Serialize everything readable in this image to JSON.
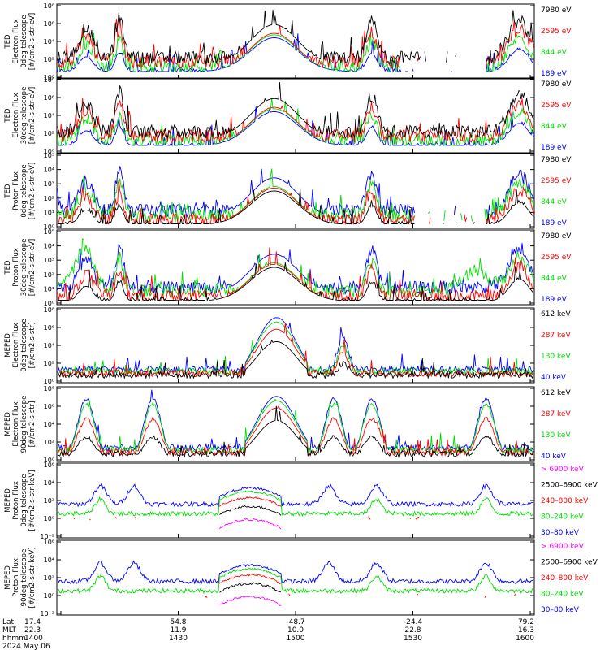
{
  "chart_data": {
    "type": "line",
    "date_label": "2024 May 06",
    "x_axis": {
      "row_labels": [
        "Lat",
        "MLT",
        "hhmm"
      ],
      "ticks": [
        {
          "lat": "17.4",
          "mlt": "22.3",
          "hhmm": "1400"
        },
        {
          "lat": "54.8",
          "mlt": "11.9",
          "hhmm": "1430"
        },
        {
          "lat": "-48.7",
          "mlt": "10.0",
          "hhmm": "1500"
        },
        {
          "lat": "-24.4",
          "mlt": "22.8",
          "hhmm": "1530"
        },
        {
          "lat": "79.2",
          "mlt": "16.3",
          "hhmm": "1600"
        }
      ]
    },
    "panels": [
      {
        "ylabel_lines": [
          "TED",
          "Electron Flux",
          "0deg telescope",
          "[#/cm2-s-str-eV]"
        ],
        "y_ticks": [
          "10⁸",
          "10⁶",
          "10⁴",
          "10²",
          "10⁰"
        ],
        "legend": [
          {
            "label": "7980 eV",
            "color": "#000000"
          },
          {
            "label": "2595 eV",
            "color": "#ff0000"
          },
          {
            "label": "844 eV",
            "color": "#00dd00"
          },
          {
            "label": "189 eV",
            "color": "#0000ff"
          }
        ]
      },
      {
        "ylabel_lines": [
          "TED",
          "Electron Flux",
          "30deg telescope",
          "[#/cm2-s-str-eV]"
        ],
        "y_ticks": [
          "10⁸",
          "10⁶",
          "10⁴",
          "10²",
          "10⁰"
        ],
        "legend": [
          {
            "label": "7980 eV",
            "color": "#000000"
          },
          {
            "label": "2595 eV",
            "color": "#ff0000"
          },
          {
            "label": "844 eV",
            "color": "#00dd00"
          },
          {
            "label": "189 eV",
            "color": "#0000ff"
          }
        ]
      },
      {
        "ylabel_lines": [
          "TED",
          "Proton Flux",
          "0deg telescope",
          "[#/cm2-s-str-eV]"
        ],
        "y_ticks": [
          "10⁵",
          "10⁴",
          "10³",
          "10²",
          "10¹",
          "10⁰"
        ],
        "legend": [
          {
            "label": "7980 eV",
            "color": "#000000"
          },
          {
            "label": "2595 eV",
            "color": "#ff0000"
          },
          {
            "label": "844 eV",
            "color": "#00dd00"
          },
          {
            "label": "189 eV",
            "color": "#0000ff"
          }
        ]
      },
      {
        "ylabel_lines": [
          "TED",
          "Proton Flux",
          "30deg telescope",
          "[#/cm2-s-str-eV]"
        ],
        "y_ticks": [
          "10⁵",
          "10⁴",
          "10³",
          "10²",
          "10¹",
          "10⁰"
        ],
        "legend": [
          {
            "label": "7980 eV",
            "color": "#000000"
          },
          {
            "label": "2595 eV",
            "color": "#ff0000"
          },
          {
            "label": "844 eV",
            "color": "#00dd00"
          },
          {
            "label": "189 eV",
            "color": "#0000ff"
          }
        ]
      },
      {
        "ylabel_lines": [
          "MEPED",
          "Electron Flux",
          "0deg telescope",
          "[#/cm2-s-str]"
        ],
        "y_ticks": [
          "10⁸",
          "10⁶",
          "10⁴",
          "10²",
          "10⁰"
        ],
        "legend": [
          {
            "label": "612 keV",
            "color": "#000000"
          },
          {
            "label": "287 keV",
            "color": "#ff0000"
          },
          {
            "label": "130 keV",
            "color": "#00dd00"
          },
          {
            "label": "40 keV",
            "color": "#0000ff"
          }
        ]
      },
      {
        "ylabel_lines": [
          "MEPED",
          "Electron Flux",
          "90deg telescope",
          "[#/cm2-s-str]"
        ],
        "y_ticks": [
          "10⁸",
          "10⁶",
          "10⁴",
          "10²",
          "10⁰"
        ],
        "legend": [
          {
            "label": "612 keV",
            "color": "#000000"
          },
          {
            "label": "287 keV",
            "color": "#ff0000"
          },
          {
            "label": "130 keV",
            "color": "#00dd00"
          },
          {
            "label": "40 keV",
            "color": "#0000ff"
          }
        ]
      },
      {
        "ylabel_lines": [
          "MEPED",
          "Proton Flux",
          "0deg telescope",
          "[#/cm2-s-str-keV]"
        ],
        "y_ticks": [
          "10⁶",
          "10⁴",
          "10²",
          "10⁰",
          "10⁻²"
        ],
        "legend": [
          {
            "label": "> 6900 keV",
            "color": "#ff00ff"
          },
          {
            "label": "2500–6900 keV",
            "color": "#000000"
          },
          {
            "label": "240–800 keV",
            "color": "#ff0000"
          },
          {
            "label": "80–240 keV",
            "color": "#00dd00"
          },
          {
            "label": "30–80 keV",
            "color": "#0000ff"
          }
        ]
      },
      {
        "ylabel_lines": [
          "MEPED",
          "Proton Flux",
          "90deg telescope",
          "[#/cm2-s-str-keV]"
        ],
        "y_ticks": [
          "10⁶",
          "10⁴",
          "10²",
          "10⁰",
          "10⁻²"
        ],
        "legend": [
          {
            "label": "> 6900 keV",
            "color": "#ff00ff"
          },
          {
            "label": "2500–6900 keV",
            "color": "#000000"
          },
          {
            "label": "240–800 keV",
            "color": "#ff0000"
          },
          {
            "label": "80–240 keV",
            "color": "#00dd00"
          },
          {
            "label": "30–80 keV",
            "color": "#0000ff"
          }
        ]
      }
    ]
  }
}
